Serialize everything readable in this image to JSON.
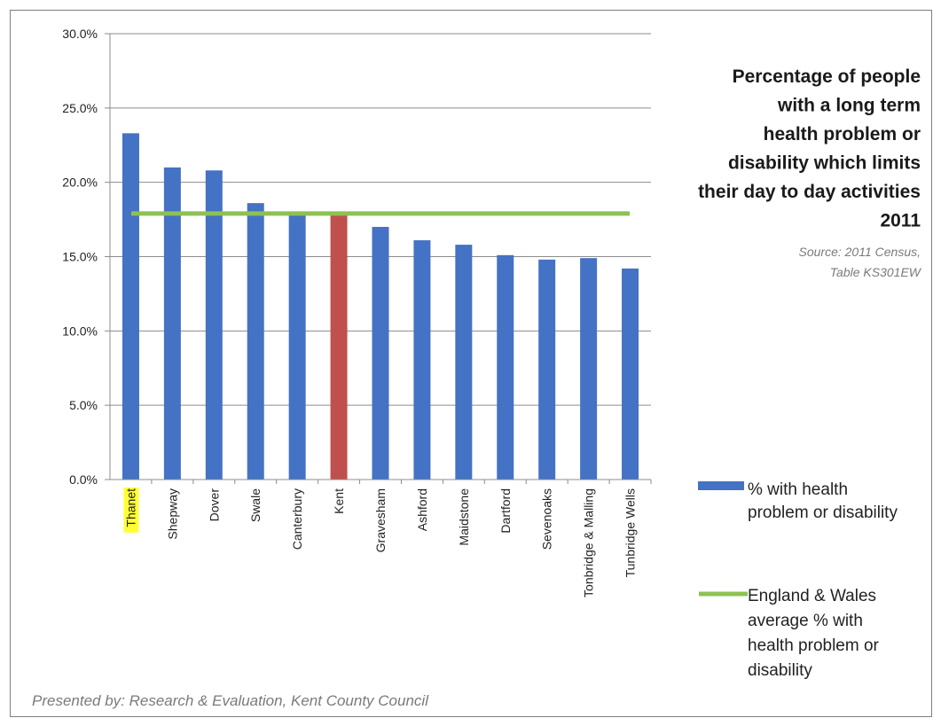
{
  "chart_data": {
    "type": "bar",
    "title_lines": [
      "Percentage of people",
      "with a long term",
      "health problem or",
      "disability which limits",
      "their day to day activities",
      "2011"
    ],
    "source_lines": [
      "Source: 2011 Census,",
      "Table KS301EW"
    ],
    "categories": [
      "Thanet",
      "Shepway",
      "Dover",
      "Swale",
      "Canterbury",
      "Kent",
      "Gravesham",
      "Ashford",
      "Maidstone",
      "Dartford",
      "Sevenoaks",
      "Tonbridge & Malling",
      "Tunbridge Wells"
    ],
    "highlighted_category": "Thanet",
    "highlighted_bar": "Kent",
    "series": [
      {
        "name_lines": [
          "% with health",
          "problem or disability"
        ],
        "color": "#4472c4",
        "highlight_color": "#c0504d",
        "values": [
          23.3,
          21.0,
          20.8,
          18.6,
          17.8,
          17.8,
          17.0,
          16.1,
          15.8,
          15.1,
          14.8,
          14.9,
          14.2
        ]
      }
    ],
    "reference_line": {
      "name_lines": [
        "England & Wales",
        "average % with",
        "health problem or",
        "disability"
      ],
      "value": 17.9,
      "color": "#8dc153"
    },
    "y_ticks": [
      "0.0%",
      "5.0%",
      "10.0%",
      "15.0%",
      "20.0%",
      "25.0%",
      "30.0%"
    ],
    "ylim": [
      0,
      30
    ],
    "grid": true,
    "legend_position": "right",
    "highlight_label_color": "#ffff33"
  },
  "footer": "Presented by: Research & Evaluation, Kent County Council"
}
